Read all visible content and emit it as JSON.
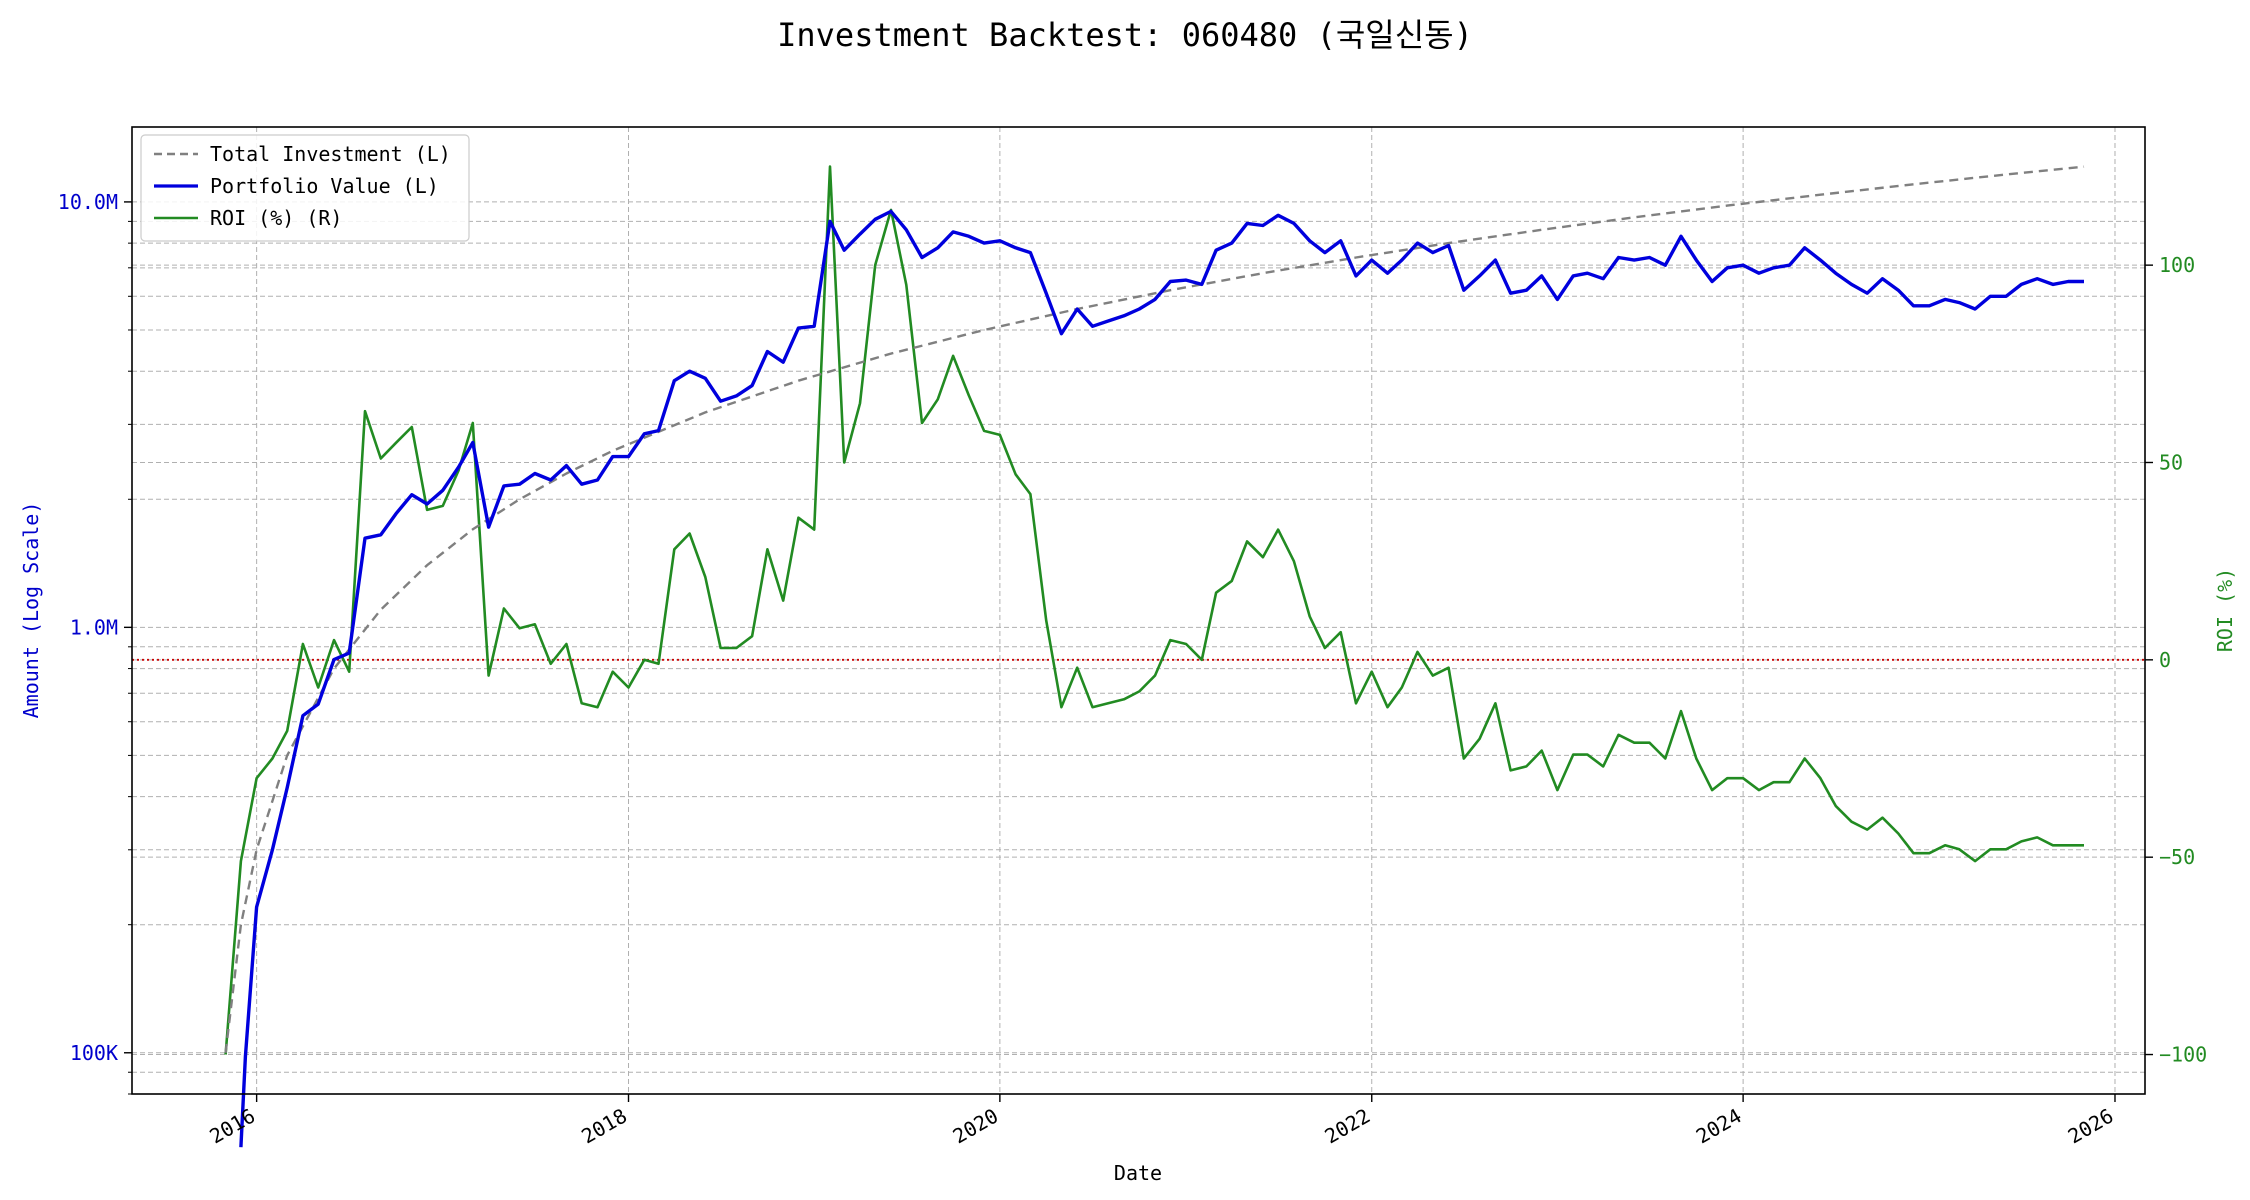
{
  "chart_data": {
    "type": "line",
    "title": "Investment Backtest: 060480 (국일신동)",
    "xlabel": "Date",
    "ylabel_left": "Amount (Log Scale)",
    "ylabel_right": "ROI (%)",
    "left_scale": "log",
    "xlim": [
      "2015-05-01",
      "2026-03-01"
    ],
    "ylim_left": [
      80000,
      15000000
    ],
    "ylim_right": [
      -110,
      135
    ],
    "x_ticks": [
      "2016",
      "2018",
      "2020",
      "2022",
      "2024",
      "2026"
    ],
    "y_left_ticks": [
      {
        "value": 100000,
        "label": "100K"
      },
      {
        "value": 1000000,
        "label": "1.0M"
      },
      {
        "value": 10000000,
        "label": "10.0M"
      }
    ],
    "y_right_ticks": [
      {
        "value": -100,
        "label": "−100"
      },
      {
        "value": -50,
        "label": "−50"
      },
      {
        "value": 0,
        "label": "0"
      },
      {
        "value": 50,
        "label": "50"
      },
      {
        "value": 100,
        "label": "100"
      }
    ],
    "grid": true,
    "legend_position": "top-left",
    "reference_line": {
      "axis": "right",
      "value": 0,
      "color": "#cc0000",
      "style": "dotted"
    },
    "colors": {
      "total": "#808080",
      "portfolio": "#0000dd",
      "roi": "#228b22"
    },
    "series": [
      {
        "name": "Total Investment (L)",
        "axis": "left",
        "style": "dashed",
        "color": "#808080",
        "x": [
          "2015-11-01",
          "2015-12-01",
          "2016-01-01",
          "2016-03-01",
          "2016-06-01",
          "2016-09-01",
          "2016-12-01",
          "2017-03-01",
          "2017-06-01",
          "2017-09-01",
          "2017-12-01",
          "2018-06-01",
          "2018-12-01",
          "2019-06-01",
          "2019-12-01",
          "2020-06-01",
          "2020-12-01",
          "2021-06-01",
          "2021-12-01",
          "2022-06-01",
          "2022-12-01",
          "2023-06-01",
          "2023-12-01",
          "2024-06-01",
          "2024-12-01",
          "2025-06-01",
          "2025-11-01"
        ],
        "values": [
          100000,
          200000,
          300000,
          500000,
          800000,
          1100000,
          1400000,
          1700000,
          2000000,
          2300000,
          2600000,
          3200000,
          3800000,
          4400000,
          5000000,
          5600000,
          6200000,
          6800000,
          7400000,
          8000000,
          8600000,
          9200000,
          9800000,
          10400000,
          11000000,
          11600000,
          12100000
        ]
      },
      {
        "name": "Portfolio Value (L)",
        "axis": "left",
        "style": "solid",
        "color": "#0000dd",
        "x": [
          "2015-12-01",
          "2015-12-10",
          "2016-01-01",
          "2016-02-01",
          "2016-03-01",
          "2016-04-01",
          "2016-05-01",
          "2016-06-01",
          "2016-07-01",
          "2016-08-01",
          "2016-09-01",
          "2016-10-01",
          "2016-11-01",
          "2016-12-01",
          "2017-01-01",
          "2017-02-01",
          "2017-03-01",
          "2017-04-01",
          "2017-05-01",
          "2017-06-01",
          "2017-07-01",
          "2017-08-01",
          "2017-09-01",
          "2017-10-01",
          "2017-11-01",
          "2017-12-01",
          "2018-01-01",
          "2018-02-01",
          "2018-03-01",
          "2018-04-01",
          "2018-05-01",
          "2018-06-01",
          "2018-07-01",
          "2018-08-01",
          "2018-09-01",
          "2018-10-01",
          "2018-11-01",
          "2018-12-01",
          "2019-01-01",
          "2019-02-01",
          "2019-03-01",
          "2019-04-01",
          "2019-05-01",
          "2019-06-01",
          "2019-07-01",
          "2019-08-01",
          "2019-09-01",
          "2019-10-01",
          "2019-11-01",
          "2019-12-01",
          "2020-01-01",
          "2020-02-01",
          "2020-03-01",
          "2020-04-01",
          "2020-05-01",
          "2020-06-01",
          "2020-07-01",
          "2020-08-01",
          "2020-09-01",
          "2020-10-01",
          "2020-11-01",
          "2020-12-01",
          "2021-01-01",
          "2021-02-01",
          "2021-03-01",
          "2021-04-01",
          "2021-05-01",
          "2021-06-01",
          "2021-07-01",
          "2021-08-01",
          "2021-09-01",
          "2021-10-01",
          "2021-11-01",
          "2021-12-01",
          "2022-01-01",
          "2022-02-01",
          "2022-03-01",
          "2022-04-01",
          "2022-05-01",
          "2022-06-01",
          "2022-07-01",
          "2022-08-01",
          "2022-09-01",
          "2022-10-01",
          "2022-11-01",
          "2022-12-01",
          "2023-01-01",
          "2023-02-01",
          "2023-03-01",
          "2023-04-01",
          "2023-05-01",
          "2023-06-01",
          "2023-07-01",
          "2023-08-01",
          "2023-09-01",
          "2023-10-01",
          "2023-11-01",
          "2023-12-01",
          "2024-01-01",
          "2024-02-01",
          "2024-03-01",
          "2024-04-01",
          "2024-05-01",
          "2024-06-01",
          "2024-07-01",
          "2024-08-01",
          "2024-09-01",
          "2024-10-01",
          "2024-11-01",
          "2024-12-01",
          "2025-01-01",
          "2025-02-01",
          "2025-03-01",
          "2025-04-01",
          "2025-05-01",
          "2025-06-01",
          "2025-07-01",
          "2025-08-01",
          "2025-09-01",
          "2025-10-01",
          "2025-11-01"
        ],
        "values": [
          60000,
          98000,
          220000,
          300000,
          420000,
          620000,
          660000,
          840000,
          870000,
          1620000,
          1650000,
          1850000,
          2050000,
          1950000,
          2100000,
          2380000,
          2720000,
          1720000,
          2150000,
          2170000,
          2300000,
          2220000,
          2400000,
          2170000,
          2220000,
          2520000,
          2520000,
          2850000,
          2900000,
          3800000,
          4000000,
          3850000,
          3400000,
          3500000,
          3700000,
          4450000,
          4200000,
          5050000,
          5100000,
          9000000,
          7700000,
          8400000,
          9100000,
          9500000,
          8600000,
          7400000,
          7800000,
          8500000,
          8300000,
          8000000,
          8100000,
          7800000,
          7600000,
          6100000,
          4900000,
          5600000,
          5100000,
          5250000,
          5400000,
          5600000,
          5900000,
          6500000,
          6550000,
          6400000,
          7700000,
          8000000,
          8900000,
          8800000,
          9300000,
          8900000,
          8100000,
          7600000,
          8100000,
          6700000,
          7300000,
          6800000,
          7300000,
          8000000,
          7600000,
          7900000,
          6200000,
          6700000,
          7300000,
          6100000,
          6200000,
          6700000,
          5900000,
          6700000,
          6800000,
          6600000,
          7400000,
          7300000,
          7400000,
          7100000,
          8300000,
          7300000,
          6500000,
          7000000,
          7100000,
          6800000,
          7000000,
          7100000,
          7800000,
          7300000,
          6800000,
          6400000,
          6100000,
          6600000,
          6200000,
          5700000,
          5700000,
          5900000,
          5800000,
          5600000,
          6000000,
          6000000,
          6400000,
          6600000,
          6400000,
          6500000,
          6500000
        ]
      },
      {
        "name": "ROI (%) (R)",
        "axis": "right",
        "style": "solid",
        "color": "#228b22",
        "x": [
          "2015-11-01",
          "2015-12-01",
          "2016-01-01",
          "2016-02-01",
          "2016-03-01",
          "2016-04-01",
          "2016-05-01",
          "2016-06-01",
          "2016-07-01",
          "2016-08-01",
          "2016-09-01",
          "2016-10-01",
          "2016-11-01",
          "2016-12-01",
          "2017-01-01",
          "2017-02-01",
          "2017-03-01",
          "2017-04-01",
          "2017-05-01",
          "2017-06-01",
          "2017-07-01",
          "2017-08-01",
          "2017-09-01",
          "2017-10-01",
          "2017-11-01",
          "2017-12-01",
          "2018-01-01",
          "2018-02-01",
          "2018-03-01",
          "2018-04-01",
          "2018-05-01",
          "2018-06-01",
          "2018-07-01",
          "2018-08-01",
          "2018-09-01",
          "2018-10-01",
          "2018-11-01",
          "2018-12-01",
          "2019-01-01",
          "2019-02-01",
          "2019-03-01",
          "2019-04-01",
          "2019-05-01",
          "2019-06-01",
          "2019-07-01",
          "2019-08-01",
          "2019-09-01",
          "2019-10-01",
          "2019-11-01",
          "2019-12-01",
          "2020-01-01",
          "2020-02-01",
          "2020-03-01",
          "2020-04-01",
          "2020-05-01",
          "2020-06-01",
          "2020-07-01",
          "2020-08-01",
          "2020-09-01",
          "2020-10-01",
          "2020-11-01",
          "2020-12-01",
          "2021-01-01",
          "2021-02-01",
          "2021-03-01",
          "2021-04-01",
          "2021-05-01",
          "2021-06-01",
          "2021-07-01",
          "2021-08-01",
          "2021-09-01",
          "2021-10-01",
          "2021-11-01",
          "2021-12-01",
          "2022-01-01",
          "2022-02-01",
          "2022-03-01",
          "2022-04-01",
          "2022-05-01",
          "2022-06-01",
          "2022-07-01",
          "2022-08-01",
          "2022-09-01",
          "2022-10-01",
          "2022-11-01",
          "2022-12-01",
          "2023-01-01",
          "2023-02-01",
          "2023-03-01",
          "2023-04-01",
          "2023-05-01",
          "2023-06-01",
          "2023-07-01",
          "2023-08-01",
          "2023-09-01",
          "2023-10-01",
          "2023-11-01",
          "2023-12-01",
          "2024-01-01",
          "2024-02-01",
          "2024-03-01",
          "2024-04-01",
          "2024-05-01",
          "2024-06-01",
          "2024-07-01",
          "2024-08-01",
          "2024-09-01",
          "2024-10-01",
          "2024-11-01",
          "2024-12-01",
          "2025-01-01",
          "2025-02-01",
          "2025-03-01",
          "2025-04-01",
          "2025-05-01",
          "2025-06-01",
          "2025-07-01",
          "2025-08-01",
          "2025-09-01",
          "2025-10-01",
          "2025-11-01"
        ],
        "values": [
          -100,
          -51,
          -30,
          -25,
          -18,
          4,
          -7,
          5,
          -3,
          63,
          51,
          55,
          59,
          38,
          39,
          48,
          60,
          -4,
          13,
          8,
          9,
          -1,
          4,
          -11,
          -12,
          -3,
          -7,
          0,
          -1,
          28,
          32,
          21,
          3,
          3,
          6,
          28,
          15,
          36,
          33,
          125,
          50,
          65,
          100,
          114,
          95,
          60,
          66,
          77,
          67,
          58,
          57,
          47,
          42,
          10,
          -12,
          -2,
          -12,
          -11,
          -10,
          -8,
          -4,
          5,
          4,
          0,
          17,
          20,
          30,
          26,
          33,
          25,
          11,
          3,
          7,
          -11,
          -3,
          -12,
          -7,
          2,
          -4,
          -2,
          -25,
          -20,
          -11,
          -28,
          -27,
          -23,
          -33,
          -24,
          -24,
          -27,
          -19,
          -21,
          -21,
          -25,
          -13,
          -25,
          -33,
          -30,
          -30,
          -33,
          -31,
          -31,
          -25,
          -30,
          -37,
          -41,
          -43,
          -40,
          -44,
          -49,
          -49,
          -47,
          -48,
          -51,
          -48,
          -48,
          -46,
          -45,
          -47,
          -47,
          -47
        ]
      }
    ]
  }
}
